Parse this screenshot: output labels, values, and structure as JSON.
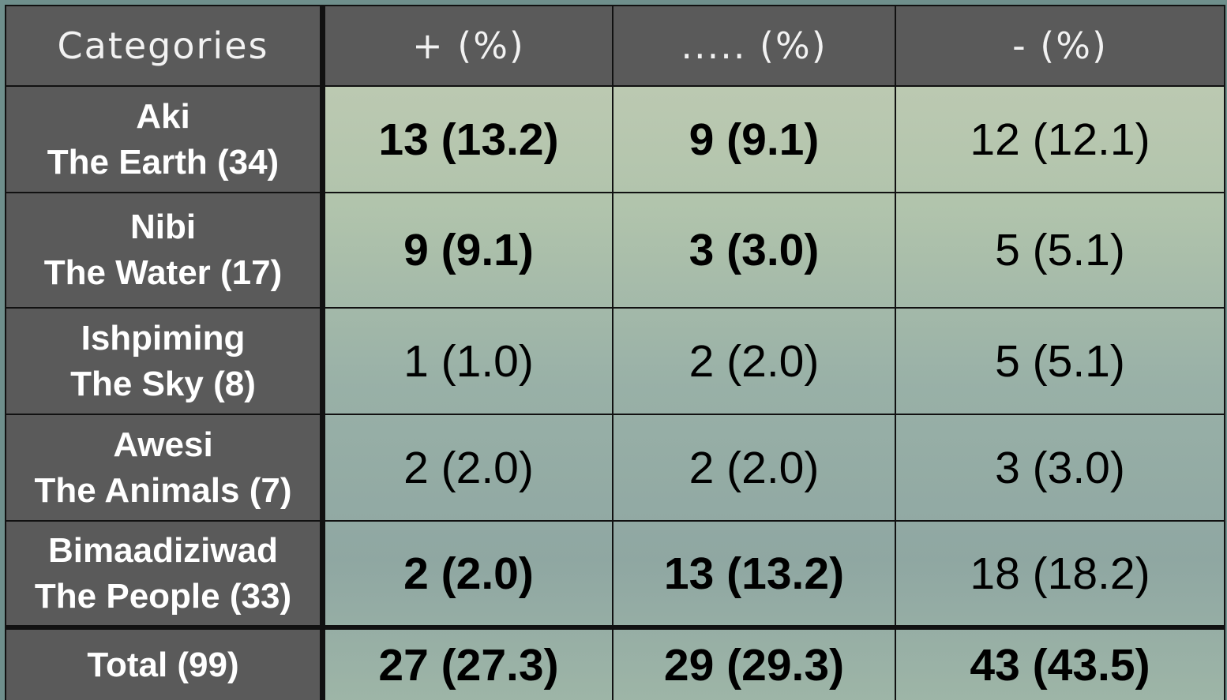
{
  "table": {
    "header": [
      "Categories",
      "+ (%)",
      "..... (%)",
      "- (%)"
    ],
    "rows": [
      {
        "name": "Aki",
        "label": "The Earth (34)",
        "cells": [
          "13 (13.2)",
          "9 (9.1)",
          "12 (12.1)"
        ]
      },
      {
        "name": "Nibi",
        "label": "The Water (17)",
        "cells": [
          "9 (9.1)",
          "3 (3.0)",
          "5 (5.1)"
        ]
      },
      {
        "name": "Ishpiming",
        "label": "The Sky (8)",
        "cells": [
          "1 (1.0)",
          "2 (2.0)",
          "5 (5.1)"
        ]
      },
      {
        "name": "Awesi",
        "label": "The Animals (7)",
        "cells": [
          "2 (2.0)",
          "2 (2.0)",
          "3 (3.0)"
        ]
      },
      {
        "name": "Bimaadiziwad",
        "label": "The People (33)",
        "cells": [
          "2 (2.0)",
          "13 (13.2)",
          "18 (18.2)"
        ]
      }
    ],
    "total": {
      "label": "Total (99)",
      "cells": [
        "27 (27.3)",
        "29 (29.3)",
        "43 (43.5)"
      ]
    }
  }
}
